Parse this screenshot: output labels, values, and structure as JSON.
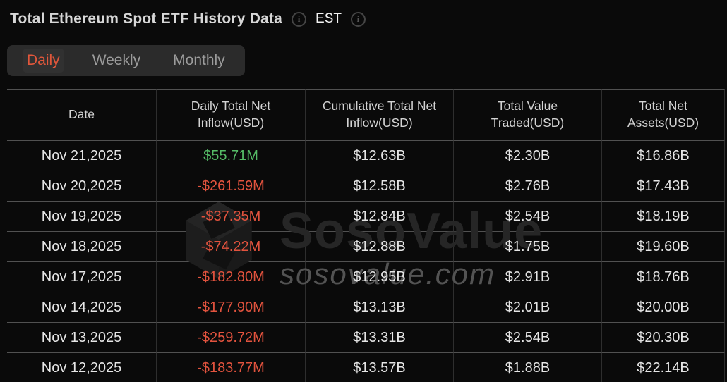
{
  "header": {
    "title": "Total Ethereum Spot ETF History Data",
    "timezone_label": "EST",
    "info_glyph": "i"
  },
  "tabs": [
    {
      "label": "Daily",
      "active": true
    },
    {
      "label": "Weekly",
      "active": false
    },
    {
      "label": "Monthly",
      "active": false
    }
  ],
  "colors": {
    "accent": "#e2573b",
    "positive": "#55bb66",
    "negative": "#e2533e",
    "background": "#0a0a0a"
  },
  "watermark": {
    "brand": "SosoValue",
    "domain": "sosovalue.com",
    "logo": "sosovalue-cube-logo"
  },
  "table": {
    "columns": [
      "Date",
      "Daily Total Net Inflow(USD)",
      "Cumulative Total Net Inflow(USD)",
      "Total Value Traded(USD)",
      "Total Net Assets(USD)"
    ],
    "rows": [
      {
        "date": "Nov 21,2025",
        "daily_net_inflow": "$55.71M",
        "direction": "positive",
        "cumulative_net_inflow": "$12.63B",
        "value_traded": "$2.30B",
        "net_assets": "$16.86B"
      },
      {
        "date": "Nov 20,2025",
        "daily_net_inflow": "-$261.59M",
        "direction": "negative",
        "cumulative_net_inflow": "$12.58B",
        "value_traded": "$2.76B",
        "net_assets": "$17.43B"
      },
      {
        "date": "Nov 19,2025",
        "daily_net_inflow": "-$37.35M",
        "direction": "negative",
        "cumulative_net_inflow": "$12.84B",
        "value_traded": "$2.54B",
        "net_assets": "$18.19B"
      },
      {
        "date": "Nov 18,2025",
        "daily_net_inflow": "-$74.22M",
        "direction": "negative",
        "cumulative_net_inflow": "$12.88B",
        "value_traded": "$1.75B",
        "net_assets": "$19.60B"
      },
      {
        "date": "Nov 17,2025",
        "daily_net_inflow": "-$182.80M",
        "direction": "negative",
        "cumulative_net_inflow": "$12.95B",
        "value_traded": "$2.91B",
        "net_assets": "$18.76B"
      },
      {
        "date": "Nov 14,2025",
        "daily_net_inflow": "-$177.90M",
        "direction": "negative",
        "cumulative_net_inflow": "$13.13B",
        "value_traded": "$2.01B",
        "net_assets": "$20.00B"
      },
      {
        "date": "Nov 13,2025",
        "daily_net_inflow": "-$259.72M",
        "direction": "negative",
        "cumulative_net_inflow": "$13.31B",
        "value_traded": "$2.54B",
        "net_assets": "$20.30B"
      },
      {
        "date": "Nov 12,2025",
        "daily_net_inflow": "-$183.77M",
        "direction": "negative",
        "cumulative_net_inflow": "$13.57B",
        "value_traded": "$1.88B",
        "net_assets": "$22.14B"
      }
    ]
  }
}
